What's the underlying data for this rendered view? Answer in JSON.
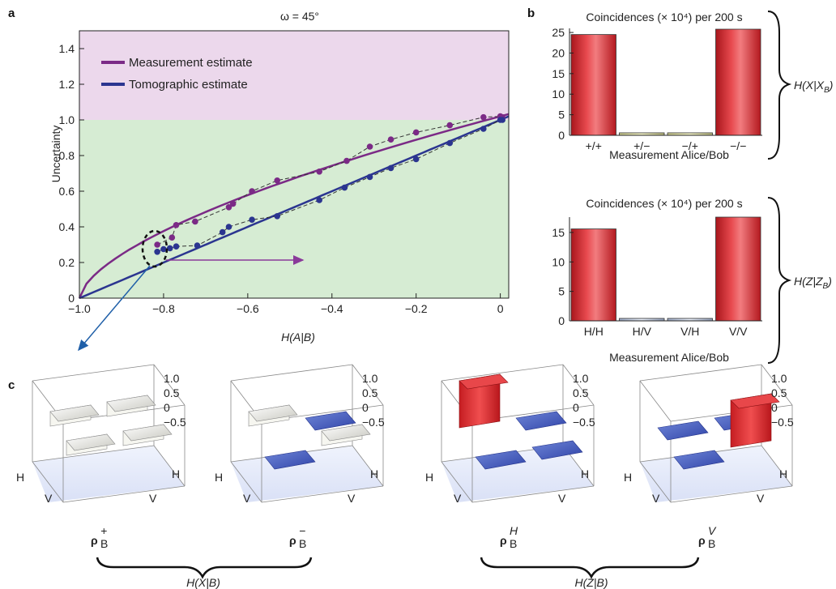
{
  "panel_labels": {
    "a": "a",
    "b": "b",
    "c": "c"
  },
  "panel_a": {
    "title": "ω = 45°",
    "ylabel": "Uncertainty",
    "xlabel": "H(A|B)",
    "legend": [
      "Measurement estimate",
      "Tomographic estimate"
    ]
  },
  "panel_b": {
    "top_title": "Coincidences (× 10⁴) per 200 s",
    "bottom_title": "Coincidences (× 10⁴) per 200 s",
    "xlabel_top": "Measurement Alice/Bob",
    "xlabel_bottom": "Measurement Alice/Bob",
    "brace_top": "H(X|X_B)",
    "brace_bottom": "H(Z|Z_B)"
  },
  "panel_c": {
    "labels": [
      "ρ_B^+",
      "ρ_B^−",
      "ρ_B^H",
      "ρ_B^V"
    ],
    "z_ticks": [
      "1.0",
      "0.5",
      "0",
      "−0.5"
    ],
    "axis_letters": [
      "H",
      "V",
      "H",
      "V"
    ],
    "brace_left": "H(X|B)",
    "brace_right": "H(Z|B)"
  },
  "colors": {
    "measurement": "#7b2a86",
    "tomographic": "#2b3590",
    "upper_region": "#ecd8ec",
    "lower_region": "#d6ecd3",
    "bar_red": "#d8262b",
    "arrow_blue": "#1f5fa8",
    "arrow_purple": "#8a3a9a"
  },
  "chart_data": [
    {
      "type": "scatter",
      "title": "ω = 45°",
      "xlabel": "H(A|B)",
      "ylabel": "Uncertainty",
      "xlim": [
        -1.0,
        0.02
      ],
      "ylim": [
        0,
        1.5
      ],
      "xticks": [
        -1.0,
        -0.8,
        -0.6,
        -0.4,
        -0.2,
        0
      ],
      "yticks": [
        0,
        0.2,
        0.4,
        0.6,
        0.8,
        1.0,
        1.2,
        1.4
      ],
      "xtick_labels": [
        "−1.0",
        "−0.8",
        "−0.6",
        "−0.4",
        "−0.2",
        "0"
      ],
      "ytick_labels": [
        "0",
        "0.2",
        "0.4",
        "0.6",
        "0.8",
        "1.0",
        "1.2",
        "1.4"
      ],
      "shaded_regions": [
        {
          "name": "upper",
          "y_from": 1.0,
          "y_to": 1.5
        },
        {
          "name": "lower",
          "y_from": 0,
          "y_to": 1.0
        }
      ],
      "series": [
        {
          "name": "Measurement estimate",
          "kind": "points",
          "x": [
            -0.815,
            -0.78,
            -0.77,
            -0.725,
            -0.645,
            -0.635,
            -0.59,
            -0.53,
            -0.43,
            -0.365,
            -0.31,
            -0.26,
            -0.2,
            -0.12,
            -0.04,
            0.0,
            0.005
          ],
          "y": [
            0.3,
            0.34,
            0.41,
            0.43,
            0.51,
            0.53,
            0.6,
            0.66,
            0.71,
            0.77,
            0.85,
            0.89,
            0.93,
            0.97,
            1.015,
            1.02,
            1.015
          ]
        },
        {
          "name": "Tomographic estimate",
          "kind": "points",
          "x": [
            -0.815,
            -0.8,
            -0.785,
            -0.77,
            -0.72,
            -0.66,
            -0.645,
            -0.59,
            -0.53,
            -0.43,
            -0.37,
            -0.31,
            -0.26,
            -0.2,
            -0.12,
            -0.04,
            0.0,
            0.005
          ],
          "y": [
            0.26,
            0.275,
            0.28,
            0.29,
            0.295,
            0.37,
            0.4,
            0.44,
            0.46,
            0.55,
            0.62,
            0.68,
            0.73,
            0.78,
            0.87,
            0.95,
            1.0,
            1.0
          ]
        }
      ]
    },
    {
      "type": "bar",
      "title": "Coincidences (× 10⁴) per 200 s",
      "xlabel": "Measurement Alice/Bob",
      "categories": [
        "+/+",
        "+/−",
        "−/+",
        "−/−"
      ],
      "values": [
        24.5,
        0.6,
        0.6,
        25.8
      ],
      "ylim": [
        0,
        26
      ],
      "yticks": [
        0,
        5,
        10,
        15,
        20,
        25
      ]
    },
    {
      "type": "bar",
      "title": "Coincidences (× 10⁴) per 200 s",
      "xlabel": "Measurement Alice/Bob",
      "categories": [
        "H/H",
        "H/V",
        "V/H",
        "V/V"
      ],
      "values": [
        15.6,
        0.3,
        0.4,
        17.6
      ],
      "ylim": [
        0,
        17.6
      ],
      "yticks": [
        0,
        5,
        10,
        15
      ]
    }
  ]
}
